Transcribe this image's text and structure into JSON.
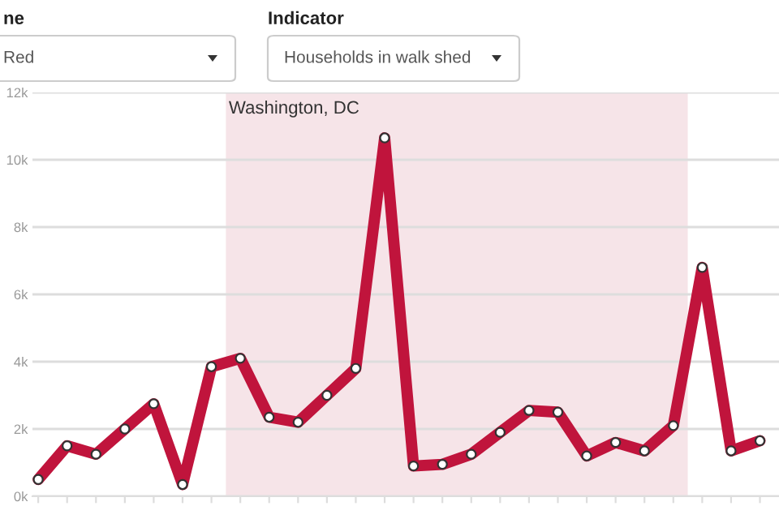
{
  "chart_data": {
    "type": "line",
    "categories": [
      null,
      null,
      null,
      null,
      null,
      null,
      null,
      null,
      null,
      null,
      null,
      null,
      null,
      null,
      null,
      null,
      null,
      null,
      null,
      null,
      null,
      null,
      null,
      null,
      null,
      null
    ],
    "series": [
      {
        "color": "#c0143c",
        "values": [
          0.5,
          1.5,
          1.25,
          2.0,
          2.75,
          0.35,
          3.85,
          4.1,
          2.35,
          2.2,
          3.0,
          3.8,
          10.65,
          0.9,
          0.95,
          1.25,
          1.9,
          2.55,
          2.5,
          1.2,
          1.6,
          1.35,
          2.1,
          6.8,
          1.35,
          1.65
        ]
      }
    ],
    "ylim": [
      0,
      12
    ],
    "yticks": [
      {
        "value": 0,
        "label": "0k"
      },
      {
        "value": 2,
        "label": "2k"
      },
      {
        "value": 4,
        "label": "4k"
      },
      {
        "value": 6,
        "label": "6k"
      },
      {
        "value": 8,
        "label": "8k"
      },
      {
        "value": 10,
        "label": "10k"
      },
      {
        "value": 12,
        "label": "12k"
      }
    ],
    "annotations": [
      "ne",
      "Red",
      "Indicator",
      "Households in walk shed",
      "Washington, DC"
    ],
    "grid": "y",
    "marker": "circle",
    "line_style": "solid",
    "legend": false
  }
}
